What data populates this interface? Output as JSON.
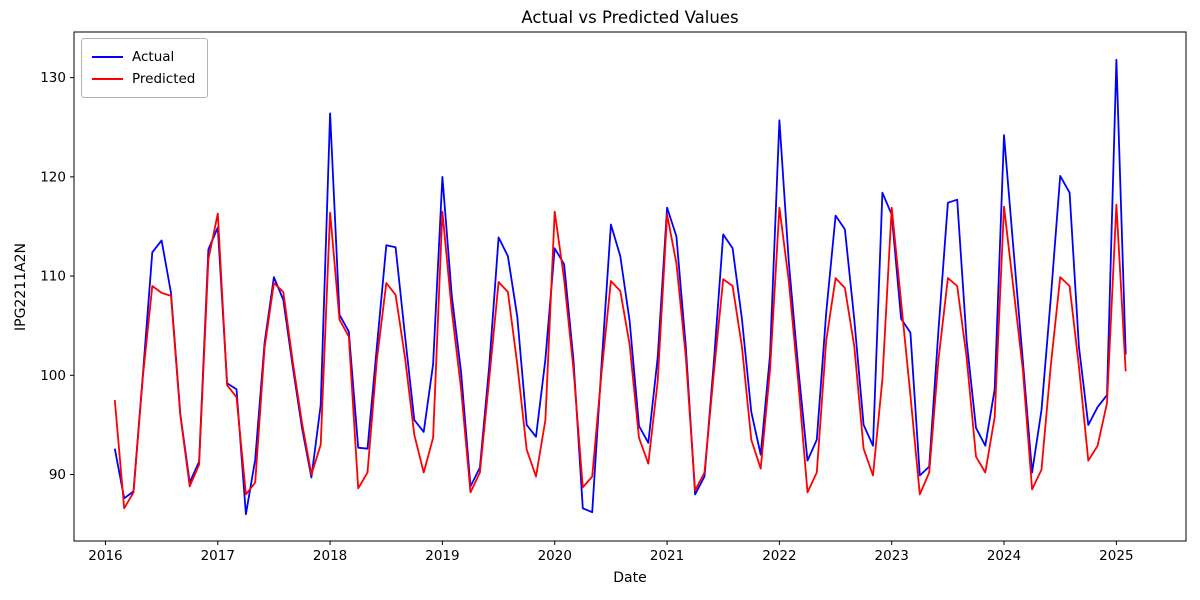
{
  "figure": {
    "background": "#ffffff",
    "title": "Actual vs Predicted Values"
  },
  "chart_data": {
    "type": "line",
    "title": "Actual vs Predicted Values",
    "xlabel": "Date",
    "ylabel": "IPG2211A2N",
    "x_start": "2016-02",
    "x_end": "2025-02",
    "frequency": "monthly",
    "grid": false,
    "legend_position": "upper-left",
    "xticks": [
      2016,
      2017,
      2018,
      2019,
      2020,
      2021,
      2022,
      2023,
      2024,
      2025
    ],
    "yticks": [
      90,
      100,
      110,
      120,
      130
    ],
    "xlim_decimal_years": [
      2015.72,
      2025.62
    ],
    "ylim": [
      83.3,
      134.6
    ],
    "series": [
      {
        "name": "Actual",
        "color": "#0000ff",
        "values": [
          92.6,
          87.6,
          88.3,
          100.1,
          112.4,
          113.6,
          108.3,
          96.1,
          89.2,
          91.3,
          112.7,
          114.9,
          99.2,
          98.6,
          86.0,
          91.5,
          103.3,
          109.9,
          107.6,
          100.9,
          94.7,
          89.7,
          97.0,
          126.4,
          106.1,
          104.4,
          92.7,
          92.6,
          102.9,
          113.1,
          112.9,
          104.0,
          95.5,
          94.3,
          101.1,
          120.0,
          108.0,
          100.3,
          88.8,
          90.7,
          100.9,
          113.9,
          112.0,
          105.9,
          95.0,
          93.8,
          101.6,
          112.8,
          111.2,
          101.5,
          86.6,
          86.2,
          101.0,
          115.2,
          112.0,
          105.5,
          94.9,
          93.2,
          101.8,
          116.9,
          114.0,
          102.9,
          88.0,
          89.8,
          101.4,
          114.2,
          112.8,
          105.7,
          96.3,
          92.0,
          102.0,
          125.7,
          111.4,
          100.9,
          91.4,
          93.5,
          106.3,
          116.1,
          114.7,
          105.6,
          95.0,
          92.9,
          118.4,
          116.2,
          105.7,
          104.3,
          89.9,
          90.8,
          104.6,
          117.4,
          117.7,
          103.5,
          94.7,
          92.9,
          98.6,
          124.2,
          112.8,
          101.5,
          90.2,
          96.5,
          107.8,
          120.1,
          118.4,
          102.9,
          95.0,
          96.8,
          98.0,
          131.8,
          102.1
        ]
      },
      {
        "name": "Predicted",
        "color": "#ff0000",
        "values": [
          97.5,
          86.6,
          88.2,
          99.9,
          109.0,
          108.3,
          108.0,
          96.0,
          88.8,
          91.0,
          111.7,
          116.3,
          99.0,
          97.8,
          88.0,
          89.2,
          102.8,
          109.3,
          108.4,
          101.4,
          95.2,
          90.0,
          93.0,
          116.4,
          105.6,
          103.9,
          88.6,
          90.2,
          101.6,
          109.3,
          108.1,
          101.8,
          94.0,
          90.2,
          93.7,
          116.5,
          106.5,
          98.6,
          88.2,
          90.2,
          99.6,
          109.4,
          108.4,
          101.1,
          92.5,
          89.8,
          95.5,
          116.5,
          109.7,
          100.6,
          88.7,
          89.8,
          100.2,
          109.5,
          108.5,
          103.1,
          93.7,
          91.1,
          99.4,
          116.2,
          111.3,
          101.9,
          88.4,
          90.2,
          100.3,
          109.7,
          109.0,
          102.9,
          93.5,
          90.6,
          100.5,
          116.9,
          109.5,
          99.5,
          88.2,
          90.2,
          103.5,
          109.8,
          108.8,
          102.9,
          92.6,
          89.9,
          99.6,
          116.9,
          107.4,
          98.0,
          88.0,
          90.2,
          101.6,
          109.8,
          109.0,
          101.8,
          91.8,
          90.2,
          95.8,
          117.0,
          108.8,
          100.6,
          88.5,
          90.5,
          101.0,
          109.9,
          109.0,
          100.9,
          91.4,
          92.9,
          97.2,
          117.2,
          100.4
        ]
      }
    ]
  }
}
